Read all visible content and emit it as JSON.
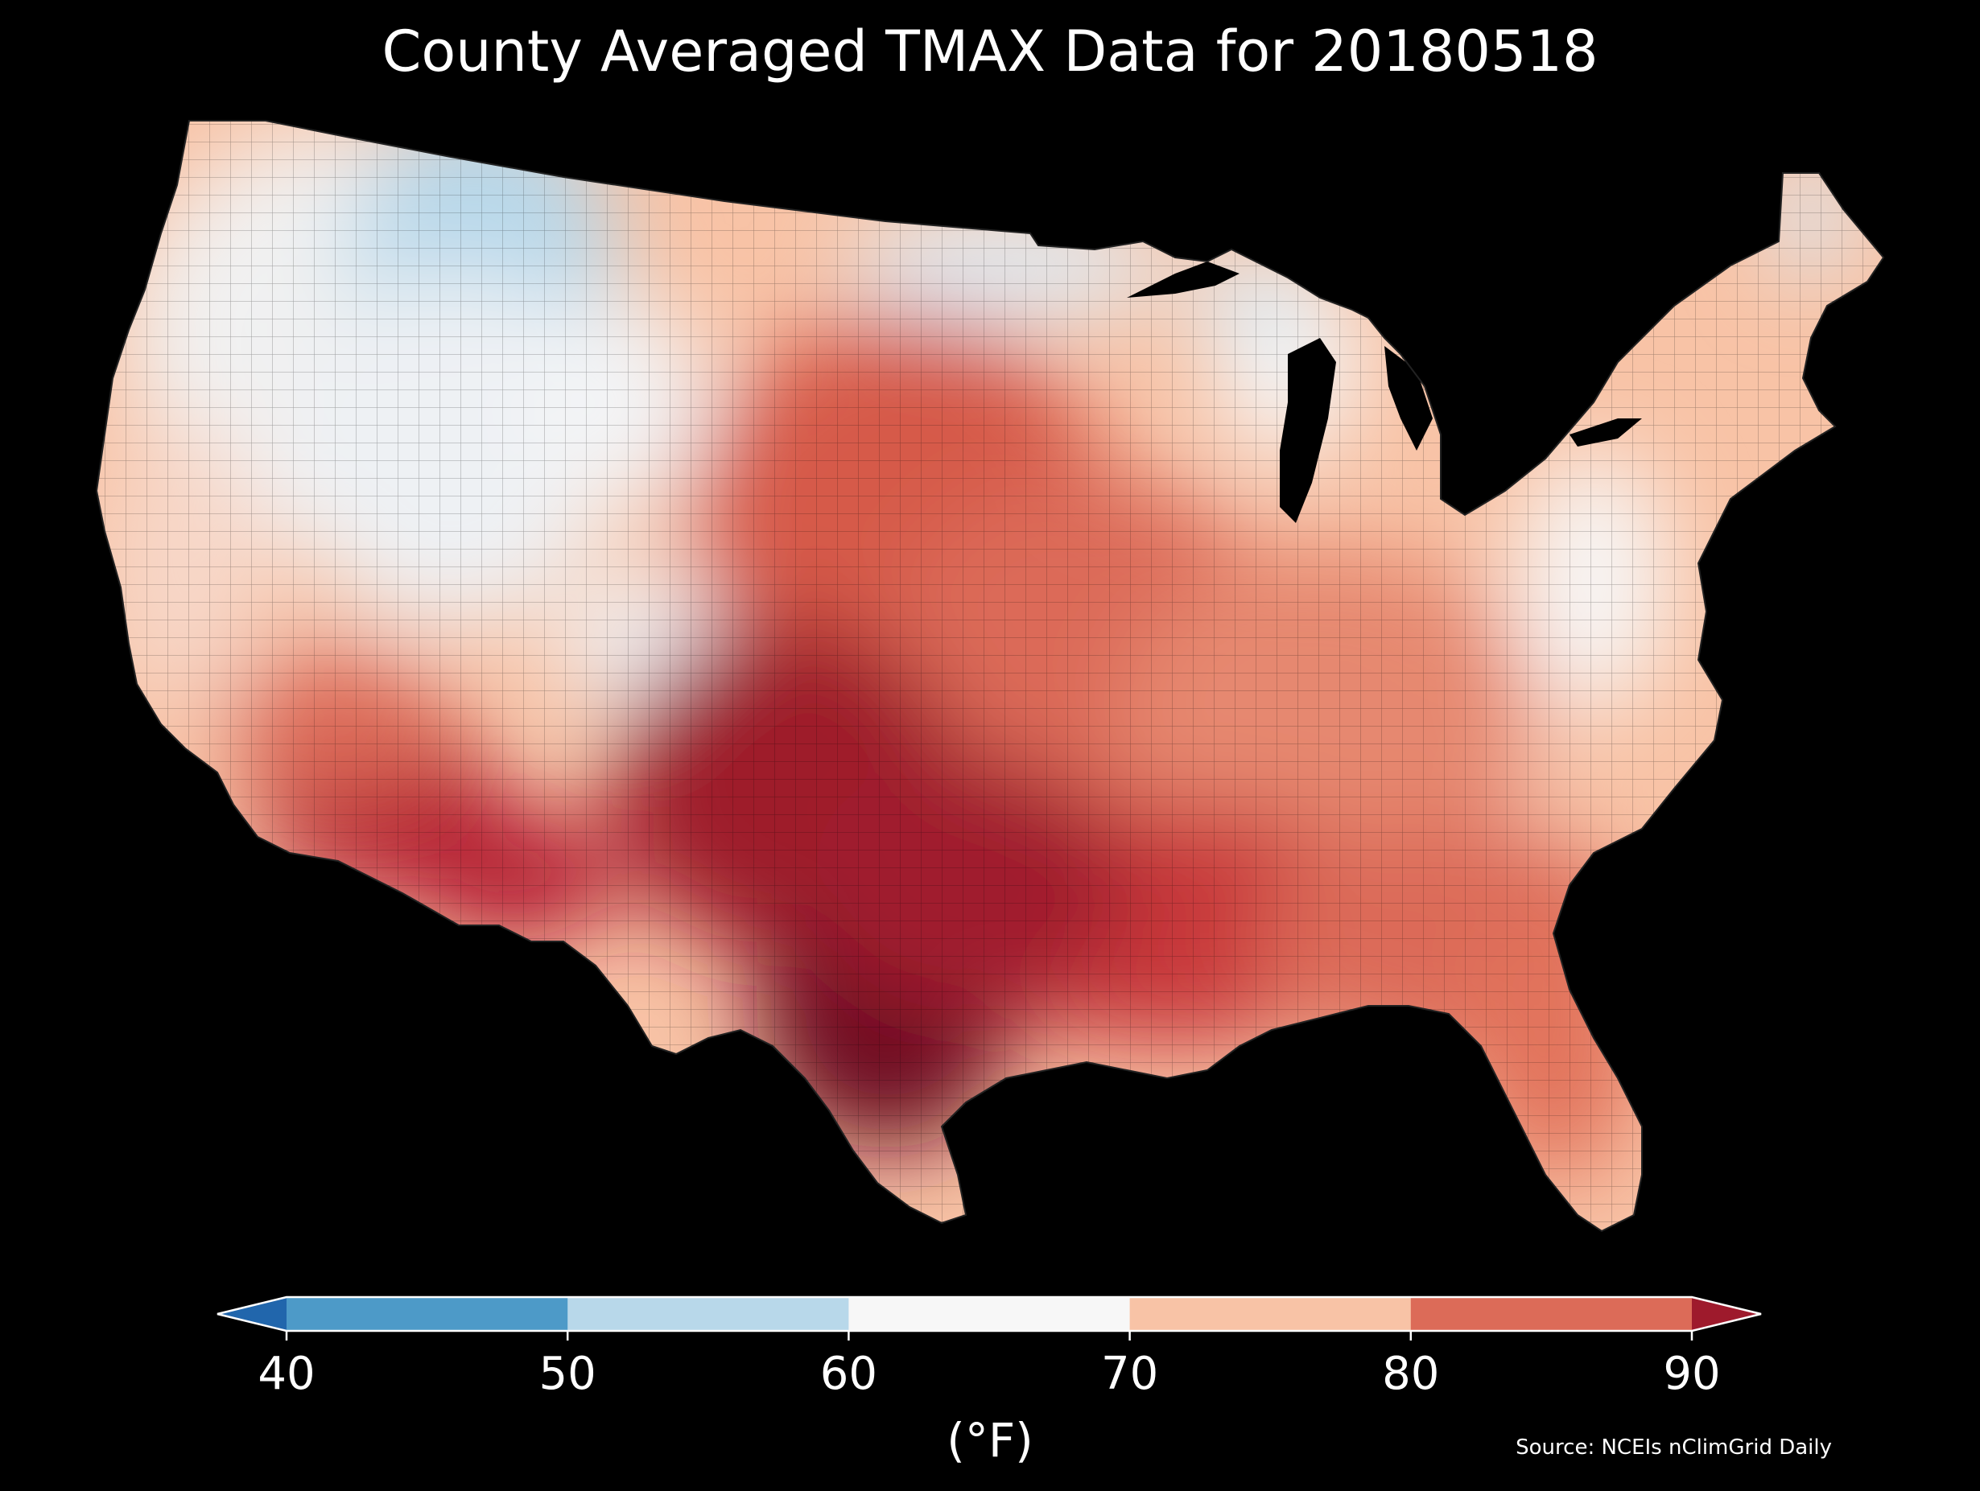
{
  "title": "County Averaged TMAX Data for 20180518",
  "colorbar": {
    "ticks": [
      "40",
      "50",
      "60",
      "70",
      "80",
      "90"
    ],
    "unit": "(°F)",
    "bins": [
      {
        "range": "<40",
        "color": "#2166ac"
      },
      {
        "range": "40-50",
        "color": "#4d9ac8"
      },
      {
        "range": "50-60",
        "color": "#b8d8ea"
      },
      {
        "range": "60-70",
        "color": "#f7f7f7"
      },
      {
        "range": "70-80",
        "color": "#f8c3a6"
      },
      {
        "range": "80-90",
        "color": "#dc6b58"
      },
      {
        "range": ">90",
        "color": "#9e1a2c"
      }
    ]
  },
  "source": "Source: NCEIs nClimGrid Daily",
  "map": {
    "region": "contiguous-united-states",
    "color_scale": "RdBu_r",
    "background": "#000000"
  }
}
